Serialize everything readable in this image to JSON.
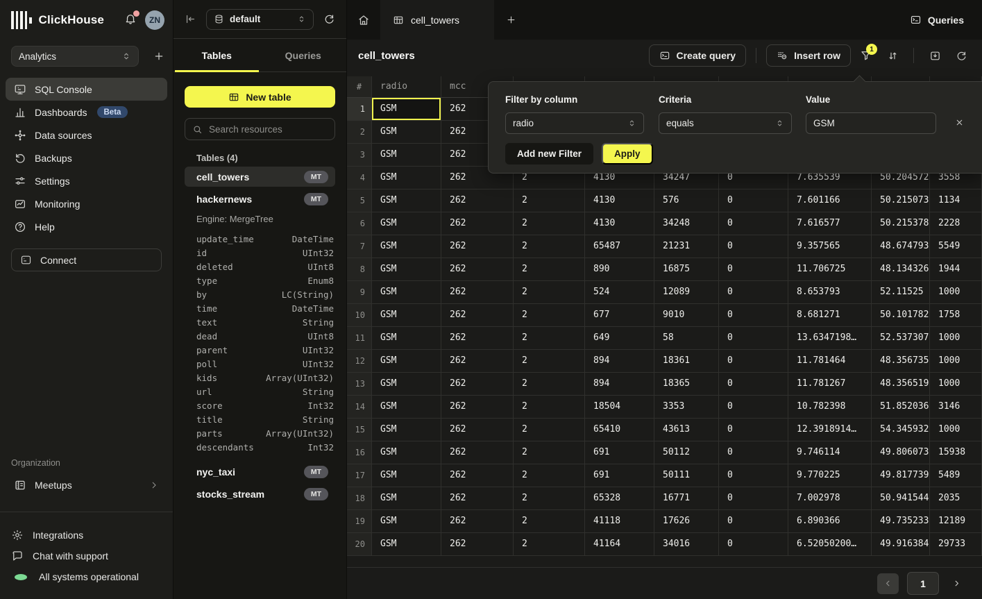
{
  "colors": {
    "accent_yellow": "#f4f64e",
    "beta_badge_bg": "#31486b",
    "status_green": "#7cd993",
    "notification_red": "#f0a1a1"
  },
  "sidebar": {
    "brand": "ClickHouse",
    "avatar_initials": "ZN",
    "workspace": {
      "value": "Analytics"
    },
    "nav": [
      {
        "id": "sql-console",
        "label": "SQL Console",
        "icon": "console-icon",
        "active": true
      },
      {
        "id": "dashboards",
        "label": "Dashboards",
        "icon": "dashboards-icon",
        "badge": "Beta"
      },
      {
        "id": "data-sources",
        "label": "Data sources",
        "icon": "data-sources-icon"
      },
      {
        "id": "backups",
        "label": "Backups",
        "icon": "backups-icon"
      },
      {
        "id": "settings",
        "label": "Settings",
        "icon": "settings-icon"
      },
      {
        "id": "monitoring",
        "label": "Monitoring",
        "icon": "monitoring-icon"
      },
      {
        "id": "help",
        "label": "Help",
        "icon": "help-icon"
      }
    ],
    "connect_label": "Connect",
    "organization_label": "Organization",
    "org_items": [
      {
        "id": "meetups",
        "label": "Meetups",
        "icon": "meetups-icon"
      }
    ],
    "footer": [
      {
        "id": "integrations",
        "label": "Integrations",
        "icon": "integrations-icon"
      },
      {
        "id": "chat",
        "label": "Chat with support",
        "icon": "chat-icon"
      },
      {
        "id": "status",
        "label": "All systems operational",
        "icon": "status-dot"
      }
    ]
  },
  "explorer": {
    "database": "default",
    "tabs": [
      "Tables",
      "Queries"
    ],
    "new_table_label": "New table",
    "search_placeholder": "Search resources",
    "section_label": "Tables (4)",
    "tables": [
      {
        "name": "cell_towers",
        "badge": "MT",
        "active": true
      },
      {
        "name": "hackernews",
        "badge": "MT",
        "engine": "Engine: MergeTree",
        "columns": [
          [
            "update_time",
            "DateTime"
          ],
          [
            "id",
            "UInt32"
          ],
          [
            "deleted",
            "UInt8"
          ],
          [
            "type",
            "Enum8"
          ],
          [
            "by",
            "LC(String)"
          ],
          [
            "time",
            "DateTime"
          ],
          [
            "text",
            "String"
          ],
          [
            "dead",
            "UInt8"
          ],
          [
            "parent",
            "UInt32"
          ],
          [
            "poll",
            "UInt32"
          ],
          [
            "kids",
            "Array(UInt32)"
          ],
          [
            "url",
            "String"
          ],
          [
            "score",
            "Int32"
          ],
          [
            "title",
            "String"
          ],
          [
            "parts",
            "Array(UInt32)"
          ],
          [
            "descendants",
            "Int32"
          ]
        ]
      },
      {
        "name": "nyc_taxi",
        "badge": "MT"
      },
      {
        "name": "stocks_stream",
        "badge": "MT"
      }
    ]
  },
  "main": {
    "tab_label": "cell_towers",
    "queries_label": "Queries",
    "title": "cell_towers",
    "toolbar": {
      "create_query": "Create query",
      "insert_row": "Insert row",
      "filter_badge": "1"
    },
    "filter_popover": {
      "column_label": "Filter by column",
      "column_value": "radio",
      "criteria_label": "Criteria",
      "criteria_value": "equals",
      "value_label": "Value",
      "value_text": "GSM",
      "add_filter_label": "Add new Filter",
      "apply_label": "Apply"
    },
    "grid": {
      "headers": [
        "#",
        "radio",
        "mcc",
        "",
        "",
        "",
        "",
        "",
        "",
        ""
      ],
      "selected_cell": {
        "row": 1,
        "col": 1
      },
      "rows": [
        [
          "GSM",
          "262",
          "",
          "",
          "",
          "",
          "",
          "",
          ""
        ],
        [
          "GSM",
          "262",
          "",
          "",
          "",
          "",
          "",
          "",
          ""
        ],
        [
          "GSM",
          "262",
          "",
          "",
          "",
          "",
          "",
          "",
          ""
        ],
        [
          "GSM",
          "262",
          "2",
          "4130",
          "34247",
          "0",
          "7.635539",
          "50.204572",
          "3558"
        ],
        [
          "GSM",
          "262",
          "2",
          "4130",
          "576",
          "0",
          "7.601166",
          "50.215073",
          "1134"
        ],
        [
          "GSM",
          "262",
          "2",
          "4130",
          "34248",
          "0",
          "7.616577",
          "50.215378",
          "2228"
        ],
        [
          "GSM",
          "262",
          "2",
          "65487",
          "21231",
          "0",
          "9.357565",
          "48.674793",
          "5549"
        ],
        [
          "GSM",
          "262",
          "2",
          "890",
          "16875",
          "0",
          "11.706725",
          "48.134326",
          "1944"
        ],
        [
          "GSM",
          "262",
          "2",
          "524",
          "12089",
          "0",
          "8.653793",
          "52.11525",
          "1000"
        ],
        [
          "GSM",
          "262",
          "2",
          "677",
          "9010",
          "0",
          "8.681271",
          "50.101782",
          "1758"
        ],
        [
          "GSM",
          "262",
          "2",
          "649",
          "58",
          "0",
          "13.6347198…",
          "52.5373077…",
          "1000"
        ],
        [
          "GSM",
          "262",
          "2",
          "894",
          "18361",
          "0",
          "11.781464",
          "48.356735",
          "1000"
        ],
        [
          "GSM",
          "262",
          "2",
          "894",
          "18365",
          "0",
          "11.781267",
          "48.356519",
          "1000"
        ],
        [
          "GSM",
          "262",
          "2",
          "18504",
          "3353",
          "0",
          "10.782398",
          "51.852036",
          "3146"
        ],
        [
          "GSM",
          "262",
          "2",
          "65410",
          "43613",
          "0",
          "12.3918914…",
          "54.3459320…",
          "1000"
        ],
        [
          "GSM",
          "262",
          "2",
          "691",
          "50112",
          "0",
          "9.746114",
          "49.806073",
          "15938"
        ],
        [
          "GSM",
          "262",
          "2",
          "691",
          "50111",
          "0",
          "9.770225",
          "49.817739",
          "5489"
        ],
        [
          "GSM",
          "262",
          "2",
          "65328",
          "16771",
          "0",
          "7.002978",
          "50.941544",
          "2035"
        ],
        [
          "GSM",
          "262",
          "2",
          "41118",
          "17626",
          "0",
          "6.890366",
          "49.735233",
          "12189"
        ],
        [
          "GSM",
          "262",
          "2",
          "41164",
          "34016",
          "0",
          "6.52050200…",
          "49.916384",
          "29733"
        ]
      ]
    },
    "pagination": {
      "page": "1"
    }
  }
}
